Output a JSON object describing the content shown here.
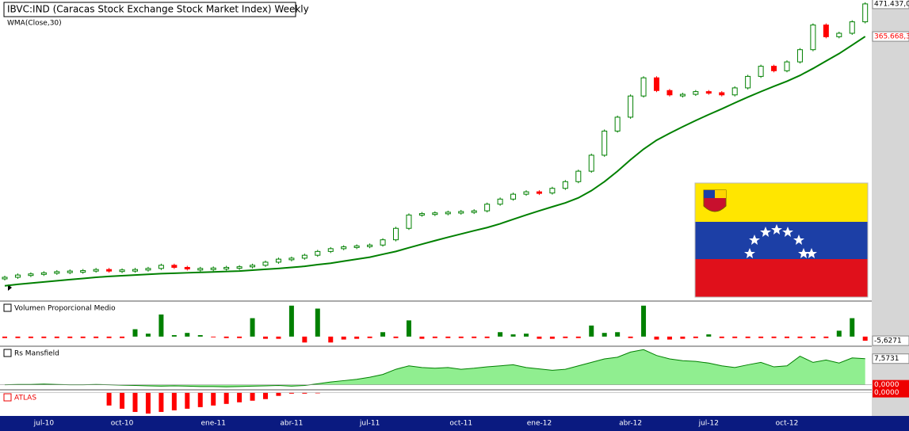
{
  "chart_data": [
    {
      "type": "candlestick",
      "title": "IBVC:IND (Caracas Stock Exchange Stock Market Index) Weekly",
      "log_scale": true,
      "ylim": [
        52000,
        480000
      ],
      "categories": [
        null,
        null,
        null,
        "jul-10",
        null,
        null,
        null,
        null,
        null,
        "oct-10",
        null,
        null,
        null,
        null,
        null,
        null,
        "ene-11",
        null,
        null,
        null,
        null,
        null,
        "abr-11",
        null,
        null,
        null,
        null,
        null,
        "jul-11",
        null,
        null,
        null,
        null,
        null,
        null,
        "oct-11",
        null,
        null,
        null,
        null,
        null,
        "ene-12",
        null,
        null,
        null,
        null,
        null,
        null,
        "abr-12",
        null,
        null,
        null,
        null,
        null,
        "jul-12",
        null,
        null,
        null,
        null,
        null,
        "oct-12",
        null,
        null,
        null,
        null,
        null,
        null
      ],
      "series": [
        {
          "up_color": "#008000",
          "down_color": "#ff0000",
          "last_value_label": "471.437,0",
          "values": [
            56000,
            57000,
            57500,
            58000,
            58500,
            58800,
            59000,
            59500,
            59000,
            59300,
            59500,
            60000,
            61500,
            60500,
            60000,
            60000,
            60200,
            60500,
            60800,
            61500,
            63000,
            64500,
            65000,
            66500,
            68500,
            70000,
            71000,
            71500,
            72000,
            75000,
            82000,
            91000,
            92000,
            92500,
            93000,
            93500,
            94000,
            99000,
            103000,
            107000,
            109000,
            108000,
            112000,
            118000,
            128000,
            145000,
            175000,
            195000,
            230000,
            265000,
            240000,
            232000,
            233000,
            238000,
            236000,
            232000,
            245000,
            268000,
            290000,
            280000,
            300000,
            330000,
            400000,
            365000,
            375000,
            410000,
            471437
          ]
        },
        {
          "name": "WMA(Close,30)",
          "color": "#008000",
          "label_color": "#ff0000",
          "last_value_label": "365.668,3",
          "values": [
            52400,
            53000,
            53500,
            54000,
            54500,
            55000,
            55500,
            56000,
            56400,
            56700,
            57000,
            57300,
            57600,
            57800,
            58000,
            58200,
            58400,
            58600,
            58800,
            59200,
            59600,
            60000,
            60500,
            61000,
            61800,
            62500,
            63500,
            64500,
            65500,
            67000,
            68500,
            70500,
            72500,
            74500,
            76500,
            78500,
            80500,
            82500,
            85000,
            88000,
            91000,
            94000,
            97000,
            100000,
            104000,
            110000,
            118000,
            128000,
            140000,
            152000,
            163000,
            172000,
            181000,
            190000,
            199000,
            208000,
            218000,
            228000,
            238000,
            248000,
            258000,
            270000,
            285000,
            302000,
            320000,
            342000,
            365668
          ]
        }
      ]
    },
    {
      "type": "bar",
      "title": "Volumen Proporcional Medio",
      "ylim": [
        -12,
        45
      ],
      "up_color": "#008000",
      "down_color": "#ff0000",
      "values": [
        -2,
        -2,
        -2,
        -2,
        -2,
        -2,
        -2,
        -2,
        -2,
        -2,
        10,
        4,
        30,
        2,
        5,
        2,
        -1,
        -2,
        -2,
        25,
        -3,
        -3,
        42,
        -8,
        38,
        -8,
        -4,
        -3,
        -2,
        6,
        -2,
        22,
        -3,
        -2,
        -2,
        -2,
        -2,
        -2,
        6,
        3,
        4,
        -3,
        -3,
        -2,
        -2,
        15,
        5,
        6,
        -2,
        42,
        -4,
        -4,
        -3,
        -2,
        3,
        -2,
        -2,
        -2,
        -2,
        -2,
        -2,
        -2,
        -2,
        -2,
        8,
        25,
        -5.6271
      ],
      "last_value_label": "-5,6271"
    },
    {
      "type": "area",
      "title": "Rs Mansfield",
      "ylim": [
        -1,
        10.5
      ],
      "color": "#008000",
      "fill": "#90ee90",
      "yticks": [
        {
          "value": 0,
          "label": "0,0000"
        }
      ],
      "values": [
        0,
        0.1,
        0.1,
        0.2,
        0.1,
        0,
        0,
        0.1,
        0,
        -0.1,
        -0.2,
        -0.3,
        -0.4,
        -0.3,
        -0.4,
        -0.5,
        -0.5,
        -0.6,
        -0.5,
        -0.4,
        -0.3,
        -0.2,
        -0.4,
        -0.2,
        0.3,
        0.8,
        1.2,
        1.6,
        2.2,
        3,
        4.5,
        5.5,
        5,
        4.8,
        5,
        4.5,
        4.8,
        5.2,
        5.5,
        5.8,
        5,
        4.6,
        4.2,
        4.5,
        5.5,
        6.5,
        7.5,
        8,
        9.5,
        10.2,
        8.5,
        7.5,
        7,
        6.8,
        6.3,
        5.5,
        5,
        5.8,
        6.5,
        5.2,
        5.5,
        8.3,
        6.5,
        7.2,
        6.3,
        7.8,
        7.5731
      ],
      "last_value_label": "7,5731"
    },
    {
      "type": "bar",
      "title": "ATLAS",
      "ylim": [
        -7,
        0.4
      ],
      "up_color": "#008000",
      "down_color": "#ff0000",
      "yticks": [
        {
          "value": 0,
          "label": "0,0000"
        }
      ],
      "values": [
        0,
        0,
        0,
        0,
        0,
        0,
        0,
        0,
        -4,
        -5,
        -6,
        -6.5,
        -6,
        -5.5,
        -5,
        -4.5,
        -4,
        -3.5,
        -3,
        -2.5,
        -2,
        -1,
        -0.3,
        -0.3,
        -0.2,
        0,
        0,
        0,
        0,
        0,
        0,
        0,
        0,
        0,
        0,
        0,
        0,
        0,
        0,
        0,
        0,
        0,
        0,
        0,
        0,
        0,
        0,
        0,
        0,
        0,
        0,
        0,
        0,
        0,
        0,
        0,
        0,
        0,
        0,
        0,
        0,
        0,
        0,
        0,
        0,
        0,
        0
      ]
    }
  ]
}
